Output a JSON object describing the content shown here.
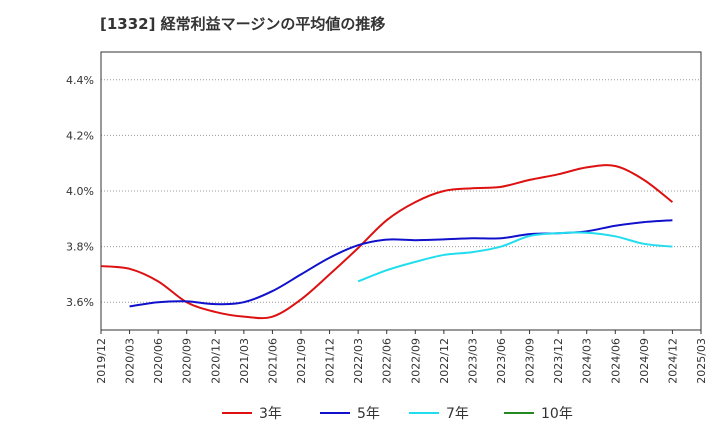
{
  "title": "[1332]  経常利益マージンの平均値の推移",
  "chart_data": {
    "type": "line",
    "title": "[1332]  経常利益マージンの平均値の推移",
    "xlabel": "",
    "ylabel": "",
    "x_ticks": [
      "2019/12",
      "2020/03",
      "2020/06",
      "2020/09",
      "2020/12",
      "2021/03",
      "2021/06",
      "2021/09",
      "2021/12",
      "2022/03",
      "2022/06",
      "2022/09",
      "2022/12",
      "2023/03",
      "2023/06",
      "2023/09",
      "2023/12",
      "2024/03",
      "2024/06",
      "2024/09",
      "2024/12",
      "2025/03"
    ],
    "y_ticks": [
      "3.6%",
      "3.8%",
      "4.0%",
      "4.2%",
      "4.4%"
    ],
    "ylim": [
      3.5,
      4.5
    ],
    "grid": "horizontal-dotted",
    "legend_position": "bottom",
    "series": [
      {
        "name": "3年",
        "color": "#dd1111",
        "x": [
          "2019/12",
          "2020/03",
          "2020/06",
          "2020/09",
          "2020/12",
          "2021/03",
          "2021/06",
          "2021/09",
          "2021/12",
          "2022/03",
          "2022/06",
          "2022/09",
          "2022/12",
          "2023/03",
          "2023/06",
          "2023/09",
          "2023/12",
          "2024/03",
          "2024/06",
          "2024/09",
          "2024/12"
        ],
        "values": [
          3.73,
          3.72,
          3.675,
          3.6,
          3.565,
          3.548,
          3.548,
          3.61,
          3.7,
          3.795,
          3.895,
          3.96,
          4.0,
          4.01,
          4.015,
          4.04,
          4.06,
          4.085,
          4.09,
          4.04,
          3.96
        ]
      },
      {
        "name": "5年",
        "color": "#1111cc",
        "x": [
          "2020/03",
          "2020/06",
          "2020/09",
          "2020/12",
          "2021/03",
          "2021/06",
          "2021/09",
          "2021/12",
          "2022/03",
          "2022/06",
          "2022/09",
          "2022/12",
          "2023/03",
          "2023/06",
          "2023/09",
          "2023/12",
          "2024/03",
          "2024/06",
          "2024/09",
          "2024/12"
        ],
        "values": [
          3.585,
          3.6,
          3.603,
          3.593,
          3.6,
          3.64,
          3.7,
          3.76,
          3.805,
          3.825,
          3.823,
          3.826,
          3.83,
          3.83,
          3.845,
          3.848,
          3.855,
          3.875,
          3.888,
          3.895
        ]
      },
      {
        "name": "7年",
        "color": "#22ddee",
        "x": [
          "2022/03",
          "2022/06",
          "2022/09",
          "2022/12",
          "2023/03",
          "2023/06",
          "2023/09",
          "2023/12",
          "2024/03",
          "2024/06",
          "2024/09",
          "2024/12"
        ],
        "values": [
          3.675,
          3.715,
          3.745,
          3.77,
          3.78,
          3.8,
          3.838,
          3.848,
          3.85,
          3.837,
          3.81,
          3.8
        ]
      },
      {
        "name": "10年",
        "color": "#228822",
        "x": [],
        "values": []
      }
    ]
  }
}
